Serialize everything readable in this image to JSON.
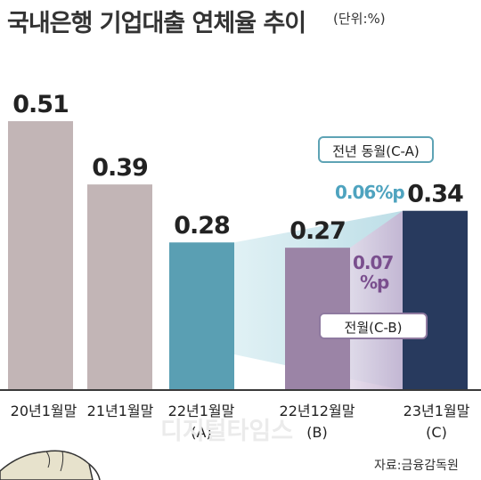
{
  "header": {
    "title": "국내은행 기업대출 연체율 추이",
    "unit": "(단위:%)"
  },
  "chart_data": {
    "type": "bar",
    "title": "국내은행 기업대출 연체율 추이",
    "unit": "(단위:%)",
    "categories": [
      "20년1월말",
      "21년1월말",
      "22년1월말",
      "22년12월말",
      "23년1월말"
    ],
    "category_tags": [
      "",
      "",
      "(A)",
      "(B)",
      "(C)"
    ],
    "values": [
      0.51,
      0.39,
      0.28,
      0.27,
      0.34
    ],
    "value_labels": [
      "0.51",
      "0.39",
      "0.28",
      "0.27",
      "0.34"
    ],
    "bar_colors": [
      "#c2b5b6",
      "#c2b5b6",
      "#5a9fb3",
      "#9b84a6",
      "#283a5e"
    ],
    "ylim": [
      0,
      0.6
    ],
    "grid": false,
    "annotations": [
      {
        "label": "전년 동월(C-A)",
        "value_label": "0.06%p",
        "color": "#4ea3bf"
      },
      {
        "label": "전월(C-B)",
        "value_label": [
          "0.07",
          "%p"
        ],
        "color": "#7a4f8e"
      }
    ]
  },
  "footer": {
    "source": "자료:금융감독원",
    "watermark": "디지털타임스"
  }
}
